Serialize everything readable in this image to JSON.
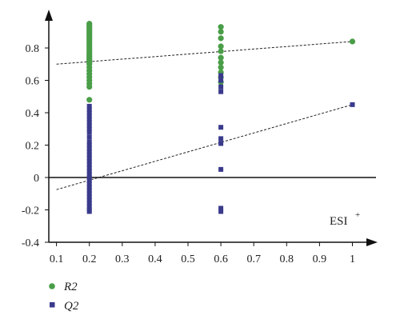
{
  "chart_data": {
    "type": "scatter",
    "xlim": [
      0.1,
      1.05
    ],
    "ylim": [
      -0.4,
      1.0
    ],
    "x_ticks": [
      0.1,
      0.2,
      0.3,
      0.4,
      0.5,
      0.6,
      0.7,
      0.8,
      0.9,
      1
    ],
    "x_tick_labels": [
      "0.1",
      "0.2",
      "0.3",
      "0.4",
      "0.5",
      "0.6",
      "0.7",
      "0.8",
      "0.9",
      "1"
    ],
    "y_ticks": [
      -0.4,
      -0.2,
      0,
      0.2,
      0.4,
      0.6,
      0.8
    ],
    "y_tick_labels": [
      "-0.4",
      "-0.2",
      "0",
      "0.2",
      "0.4",
      "0.6",
      "0.8"
    ],
    "annotation": {
      "base": "ESI",
      "sup": "+"
    },
    "legend_position": "bottom-left",
    "series": [
      {
        "name": "R2",
        "marker": "circle",
        "color": "#4a9e48",
        "points": [
          [
            0.2,
            0.95
          ],
          [
            0.2,
            0.94
          ],
          [
            0.2,
            0.93
          ],
          [
            0.2,
            0.92
          ],
          [
            0.2,
            0.91
          ],
          [
            0.2,
            0.9
          ],
          [
            0.2,
            0.89
          ],
          [
            0.2,
            0.88
          ],
          [
            0.2,
            0.87
          ],
          [
            0.2,
            0.86
          ],
          [
            0.2,
            0.85
          ],
          [
            0.2,
            0.84
          ],
          [
            0.2,
            0.83
          ],
          [
            0.2,
            0.82
          ],
          [
            0.2,
            0.81
          ],
          [
            0.2,
            0.8
          ],
          [
            0.2,
            0.79
          ],
          [
            0.2,
            0.78
          ],
          [
            0.2,
            0.77
          ],
          [
            0.2,
            0.76
          ],
          [
            0.2,
            0.75
          ],
          [
            0.2,
            0.74
          ],
          [
            0.2,
            0.73
          ],
          [
            0.2,
            0.72
          ],
          [
            0.2,
            0.71
          ],
          [
            0.2,
            0.7
          ],
          [
            0.2,
            0.68
          ],
          [
            0.2,
            0.66
          ],
          [
            0.2,
            0.64
          ],
          [
            0.2,
            0.62
          ],
          [
            0.2,
            0.6
          ],
          [
            0.2,
            0.58
          ],
          [
            0.2,
            0.56
          ],
          [
            0.2,
            0.48
          ],
          [
            0.6,
            0.93
          ],
          [
            0.6,
            0.9
          ],
          [
            0.6,
            0.86
          ],
          [
            0.6,
            0.81
          ],
          [
            0.6,
            0.78
          ],
          [
            0.6,
            0.74
          ],
          [
            0.6,
            0.71
          ],
          [
            0.6,
            0.68
          ],
          [
            0.6,
            0.65
          ],
          [
            0.6,
            0.62
          ],
          [
            0.6,
            0.59
          ],
          [
            1,
            0.84
          ]
        ]
      },
      {
        "name": "Q2",
        "marker": "square",
        "color": "#3a3a8c",
        "points": [
          [
            0.2,
            0.44
          ],
          [
            0.2,
            0.42
          ],
          [
            0.2,
            0.4
          ],
          [
            0.2,
            0.38
          ],
          [
            0.2,
            0.36
          ],
          [
            0.2,
            0.34
          ],
          [
            0.2,
            0.32
          ],
          [
            0.2,
            0.3
          ],
          [
            0.2,
            0.28
          ],
          [
            0.2,
            0.25
          ],
          [
            0.2,
            0.22
          ],
          [
            0.2,
            0.2
          ],
          [
            0.2,
            0.18
          ],
          [
            0.2,
            0.16
          ],
          [
            0.2,
            0.14
          ],
          [
            0.2,
            0.12
          ],
          [
            0.2,
            0.1
          ],
          [
            0.2,
            0.08
          ],
          [
            0.2,
            0.06
          ],
          [
            0.2,
            0.04
          ],
          [
            0.2,
            0.02
          ],
          [
            0.2,
            0.0
          ],
          [
            0.2,
            -0.02
          ],
          [
            0.2,
            -0.04
          ],
          [
            0.2,
            -0.06
          ],
          [
            0.2,
            -0.08
          ],
          [
            0.2,
            -0.1
          ],
          [
            0.2,
            -0.12
          ],
          [
            0.2,
            -0.14
          ],
          [
            0.2,
            -0.16
          ],
          [
            0.2,
            -0.18
          ],
          [
            0.2,
            -0.2
          ],
          [
            0.2,
            -0.21
          ],
          [
            0.6,
            0.63
          ],
          [
            0.6,
            0.6
          ],
          [
            0.6,
            0.56
          ],
          [
            0.6,
            0.53
          ],
          [
            0.6,
            0.31
          ],
          [
            0.6,
            0.24
          ],
          [
            0.6,
            0.21
          ],
          [
            0.6,
            0.05
          ],
          [
            0.6,
            -0.19
          ],
          [
            0.6,
            -0.21
          ],
          [
            1,
            0.45
          ]
        ]
      }
    ],
    "trendlines": [
      {
        "series": "R2",
        "x": [
          0.1,
          1
        ],
        "y": [
          0.7,
          0.84
        ]
      },
      {
        "series": "Q2",
        "x": [
          0.1,
          1
        ],
        "y": [
          -0.075,
          0.45
        ]
      }
    ]
  }
}
